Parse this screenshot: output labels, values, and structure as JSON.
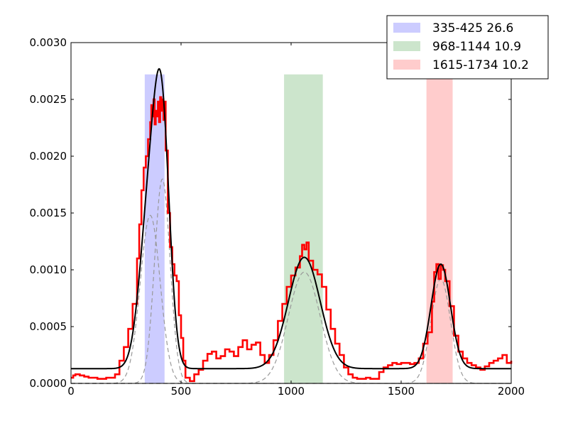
{
  "chart_data": {
    "type": "line",
    "title": "",
    "xlabel": "",
    "ylabel": "",
    "xlim": [
      0,
      2000
    ],
    "ylim": [
      0,
      0.003
    ],
    "grid": false,
    "legend_placement": "top-right",
    "x_ticks": [
      0,
      500,
      1000,
      1500,
      2000
    ],
    "x_tick_labels": [
      "0",
      "500",
      "1000",
      "1500",
      "2000"
    ],
    "y_ticks": [
      0,
      0.0005,
      0.001,
      0.0015,
      0.002,
      0.0025,
      0.003
    ],
    "y_tick_labels": [
      "0.0000",
      "0.0005",
      "0.0010",
      "0.0015",
      "0.0020",
      "0.0025",
      "0.0030"
    ],
    "bands": [
      {
        "label": "335-425 26.6",
        "x0": 335,
        "x1": 425,
        "ymax": 0.00272,
        "color": "#ccccff"
      },
      {
        "label": "968-1144 10.9",
        "x0": 968,
        "x1": 1144,
        "ymax": 0.00272,
        "color": "#cce5cc"
      },
      {
        "label": "1615-1734 10.2",
        "x0": 1615,
        "x1": 1734,
        "ymax": 0.00272,
        "color": "#ffcccc"
      }
    ],
    "fit": {
      "color": "#000000",
      "baseline": 0.00013,
      "components": [
        {
          "mu": 360,
          "sigma": 45,
          "amp": 0.00148
        },
        {
          "mu": 415,
          "sigma": 35,
          "amp": 0.0018
        },
        {
          "mu": 1060,
          "sigma": 72,
          "amp": 0.00098
        },
        {
          "mu": 1680,
          "sigma": 44,
          "amp": 0.00092
        }
      ]
    },
    "components_style": {
      "color": "#999999",
      "dash": "dashed"
    },
    "series": [
      {
        "color": "#ff0000",
        "x": [
          0,
          10,
          20,
          40,
          60,
          80,
          100,
          120,
          140,
          160,
          180,
          200,
          220,
          240,
          260,
          280,
          300,
          310,
          320,
          330,
          340,
          350,
          360,
          365,
          370,
          375,
          380,
          385,
          390,
          395,
          400,
          405,
          410,
          415,
          420,
          425,
          430,
          440,
          450,
          460,
          470,
          480,
          490,
          500,
          510,
          520,
          540,
          560,
          580,
          600,
          620,
          640,
          660,
          680,
          700,
          720,
          740,
          760,
          780,
          800,
          820,
          840,
          860,
          880,
          900,
          920,
          940,
          960,
          980,
          1000,
          1020,
          1040,
          1050,
          1060,
          1070,
          1080,
          1100,
          1120,
          1140,
          1160,
          1180,
          1200,
          1220,
          1240,
          1260,
          1280,
          1300,
          1320,
          1340,
          1360,
          1380,
          1400,
          1420,
          1440,
          1460,
          1480,
          1500,
          1520,
          1540,
          1560,
          1580,
          1600,
          1620,
          1640,
          1650,
          1660,
          1670,
          1680,
          1690,
          1700,
          1720,
          1740,
          1760,
          1780,
          1800,
          1820,
          1840,
          1860,
          1880,
          1900,
          1920,
          1940,
          1960,
          1980,
          2000
        ],
        "y": [
          5e-05,
          7e-05,
          8e-05,
          7e-05,
          6e-05,
          5e-05,
          5e-05,
          4e-05,
          4e-05,
          5e-05,
          5e-05,
          8e-05,
          0.0002,
          0.00032,
          0.00048,
          0.0007,
          0.0011,
          0.0014,
          0.0017,
          0.0019,
          0.002,
          0.00215,
          0.0023,
          0.00245,
          0.00235,
          0.0025,
          0.00228,
          0.0024,
          0.00235,
          0.00248,
          0.0023,
          0.00252,
          0.0024,
          0.0025,
          0.00232,
          0.00248,
          0.00205,
          0.0015,
          0.0012,
          0.00105,
          0.00095,
          0.0009,
          0.0006,
          0.0004,
          0.0002,
          5e-05,
          2e-05,
          8e-05,
          0.00012,
          0.0002,
          0.00026,
          0.00028,
          0.00022,
          0.00024,
          0.0003,
          0.00028,
          0.00024,
          0.00032,
          0.00038,
          0.0003,
          0.00034,
          0.00036,
          0.00025,
          0.00018,
          0.00025,
          0.00038,
          0.00055,
          0.0007,
          0.00085,
          0.00095,
          0.00102,
          0.00112,
          0.00122,
          0.00118,
          0.00124,
          0.00108,
          0.001,
          0.00096,
          0.00085,
          0.00065,
          0.00048,
          0.00035,
          0.00025,
          0.00014,
          8e-05,
          5e-05,
          4e-05,
          4e-05,
          5e-05,
          4e-05,
          4e-05,
          0.0001,
          0.00014,
          0.00016,
          0.00018,
          0.00017,
          0.00018,
          0.00018,
          0.00017,
          0.00018,
          0.00022,
          0.00035,
          0.00045,
          0.00072,
          0.00098,
          0.00105,
          0.00092,
          0.00104,
          0.001,
          0.0009,
          0.00068,
          0.00042,
          0.00028,
          0.00022,
          0.00018,
          0.00016,
          0.00014,
          0.00012,
          0.00015,
          0.00018,
          0.0002,
          0.00022,
          0.00025,
          0.00018,
          0.0002
        ]
      }
    ]
  }
}
